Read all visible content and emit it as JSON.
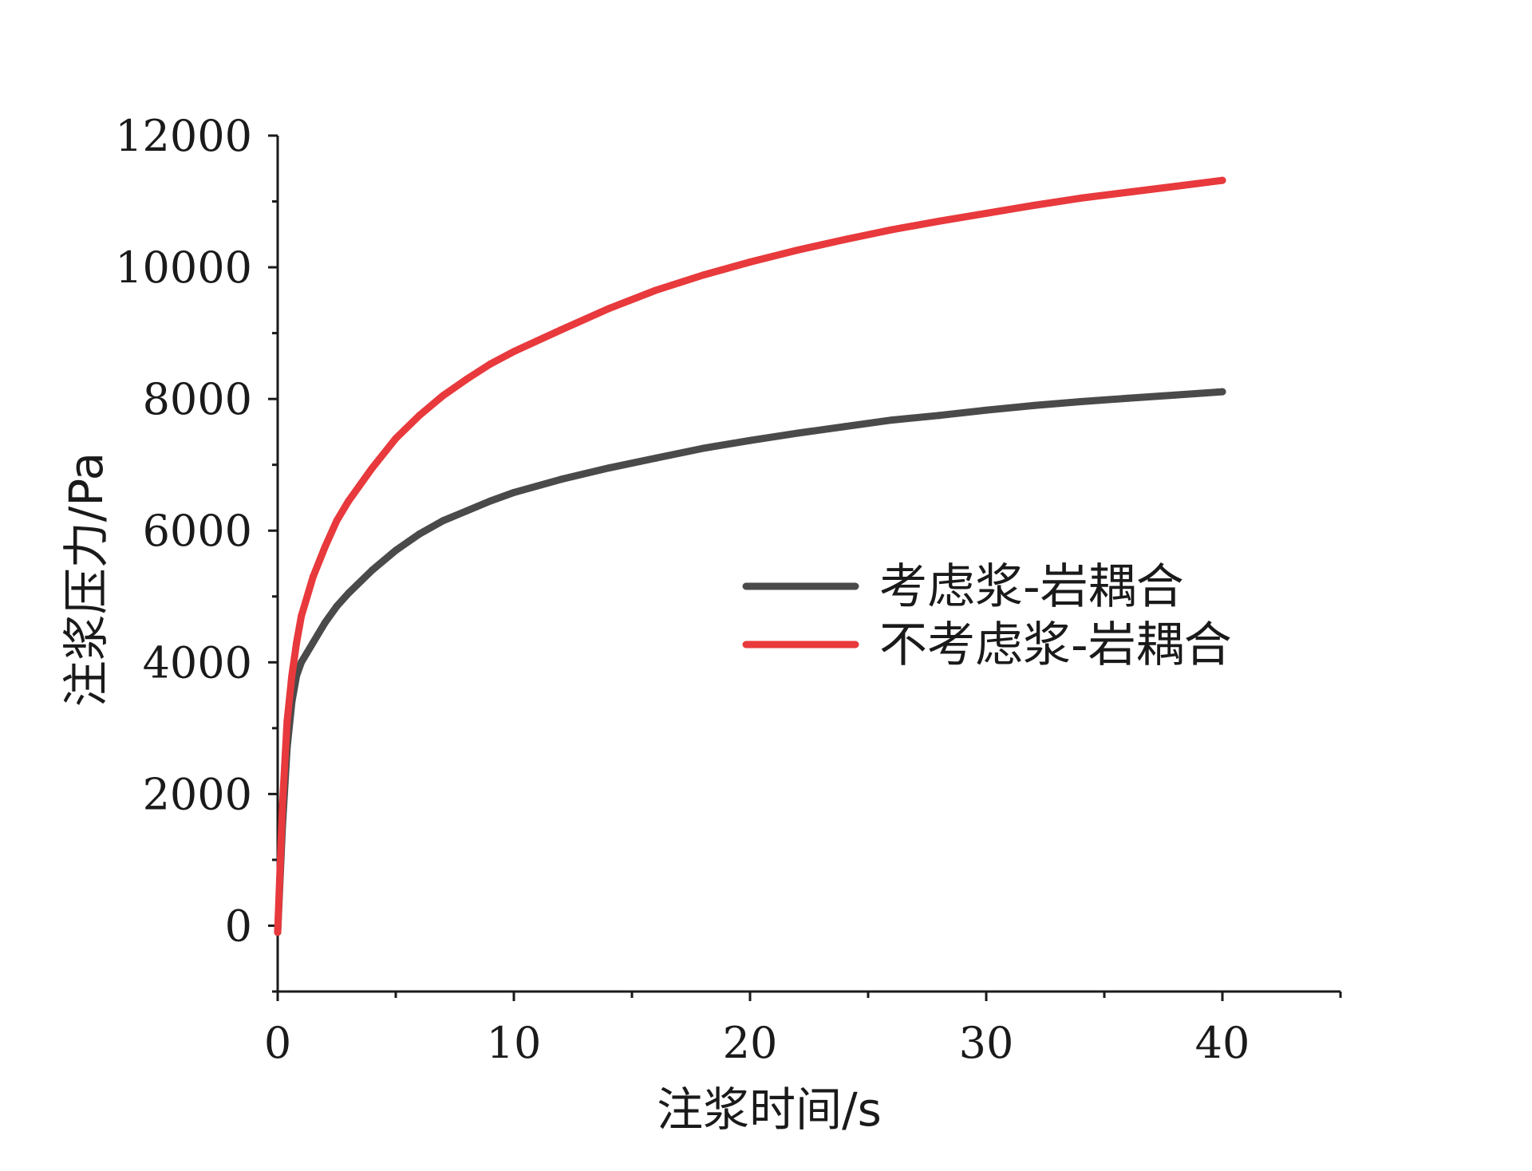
{
  "chart_data": {
    "type": "line",
    "title": "",
    "xlabel": "注浆时间/s",
    "ylabel": "注浆压力/Pa",
    "xlim": [
      0,
      45
    ],
    "ylim": [
      -1000,
      12000
    ],
    "xticks": [
      0,
      10,
      20,
      30,
      40
    ],
    "xtick_labels": [
      "0",
      "10",
      "20",
      "30",
      "40"
    ],
    "yticks": [
      0,
      2000,
      4000,
      6000,
      8000,
      10000,
      12000
    ],
    "ytick_labels": [
      "0",
      "2000",
      "4000",
      "6000",
      "8000",
      "10000",
      "12000"
    ],
    "grid": false,
    "legend_position": "center-right",
    "series": [
      {
        "name": "考虑浆-岩耦合",
        "color": "#4a4a4a",
        "x": [
          0,
          0.2,
          0.4,
          0.6,
          0.8,
          1,
          1.5,
          2,
          2.5,
          3,
          4,
          5,
          6,
          7,
          8,
          9,
          10,
          12,
          14,
          16,
          18,
          20,
          22,
          24,
          26,
          28,
          30,
          32,
          34,
          36,
          38,
          40
        ],
        "y": [
          -100,
          1500,
          2700,
          3400,
          3800,
          4000,
          4300,
          4600,
          4850,
          5050,
          5400,
          5700,
          5950,
          6150,
          6300,
          6450,
          6580,
          6780,
          6950,
          7100,
          7250,
          7370,
          7480,
          7580,
          7680,
          7750,
          7830,
          7900,
          7960,
          8010,
          8060,
          8110
        ]
      },
      {
        "name": "不考虑浆-岩耦合",
        "color": "#e8393c",
        "x": [
          0,
          0.2,
          0.4,
          0.6,
          0.8,
          1,
          1.5,
          2,
          2.5,
          3,
          4,
          5,
          6,
          7,
          8,
          9,
          10,
          12,
          14,
          16,
          18,
          20,
          22,
          24,
          26,
          28,
          30,
          32,
          34,
          36,
          38,
          40
        ],
        "y": [
          -100,
          1800,
          3100,
          3800,
          4300,
          4700,
          5300,
          5750,
          6150,
          6450,
          6950,
          7400,
          7750,
          8050,
          8300,
          8530,
          8720,
          9050,
          9370,
          9650,
          9880,
          10080,
          10260,
          10420,
          10570,
          10700,
          10820,
          10940,
          11050,
          11140,
          11230,
          11320
        ]
      }
    ]
  }
}
